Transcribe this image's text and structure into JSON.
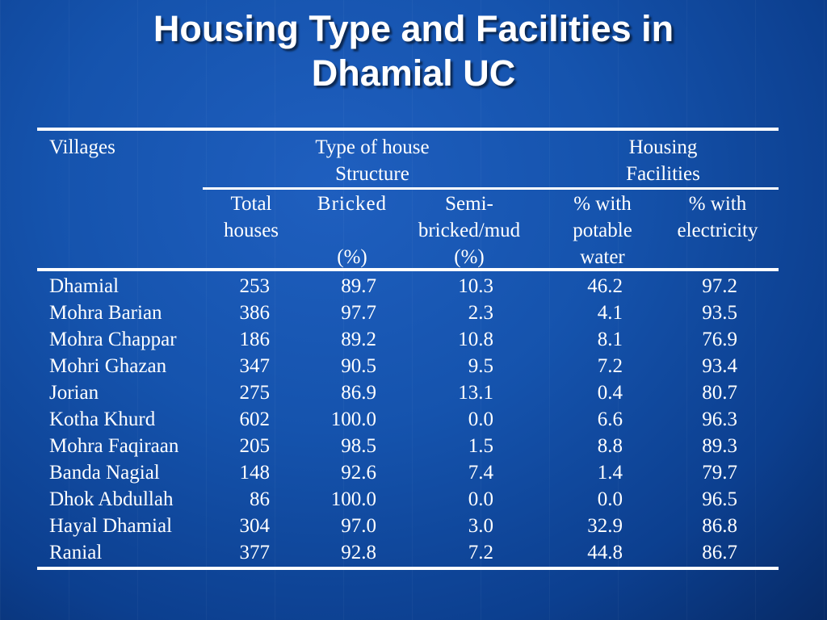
{
  "slide": {
    "title_line1": "Housing Type and Facilities in",
    "title_line2": "Dhamial UC"
  },
  "table": {
    "header": {
      "villages": "Villages",
      "type_line1": "Type of house",
      "type_line2": "Structure",
      "facilities_line1": "Housing",
      "facilities_line2": "Facilities",
      "total_line1": "Total",
      "total_line2": "houses",
      "bricked_line1": "Bricked",
      "bricked_unit": "(%)",
      "semi_line1": "Semi-",
      "semi_line2": "bricked/mud",
      "semi_unit": "(%)",
      "water_line1": "% with",
      "water_line2": "potable",
      "water_line3": "water",
      "elec_line1": "% with",
      "elec_line2": "electricity"
    },
    "rows": [
      {
        "village": "Dhamial",
        "total": "253",
        "bricked": "89.7",
        "semi": "10.3",
        "water": "46.2",
        "electricity": "97.2"
      },
      {
        "village": "Mohra Barian",
        "total": "386",
        "bricked": "97.7",
        "semi": "2.3",
        "water": "4.1",
        "electricity": "93.5"
      },
      {
        "village": "Mohra Chappar",
        "total": "186",
        "bricked": "89.2",
        "semi": "10.8",
        "water": "8.1",
        "electricity": "76.9"
      },
      {
        "village": "Mohri Ghazan",
        "total": "347",
        "bricked": "90.5",
        "semi": "9.5",
        "water": "7.2",
        "electricity": "93.4"
      },
      {
        "village": "Jorian",
        "total": "275",
        "bricked": "86.9",
        "semi": "13.1",
        "water": "0.4",
        "electricity": "80.7"
      },
      {
        "village": "Kotha Khurd",
        "total": "602",
        "bricked": "100.0",
        "semi": "0.0",
        "water": "6.6",
        "electricity": "96.3"
      },
      {
        "village": "Mohra Faqiraan",
        "total": "205",
        "bricked": "98.5",
        "semi": "1.5",
        "water": "8.8",
        "electricity": "89.3"
      },
      {
        "village": "Banda Nagial",
        "total": "148",
        "bricked": "92.6",
        "semi": "7.4",
        "water": "1.4",
        "electricity": "79.7"
      },
      {
        "village": "Dhok Abdullah",
        "total": "86",
        "bricked": "100.0",
        "semi": "0.0",
        "water": "0.0",
        "electricity": "96.5"
      },
      {
        "village": "Hayal Dhamial",
        "total": "304",
        "bricked": "97.0",
        "semi": "3.0",
        "water": "32.9",
        "electricity": "86.8"
      },
      {
        "village": "Ranial",
        "total": "377",
        "bricked": "92.8",
        "semi": "7.2",
        "water": "44.8",
        "electricity": "86.7"
      }
    ]
  }
}
